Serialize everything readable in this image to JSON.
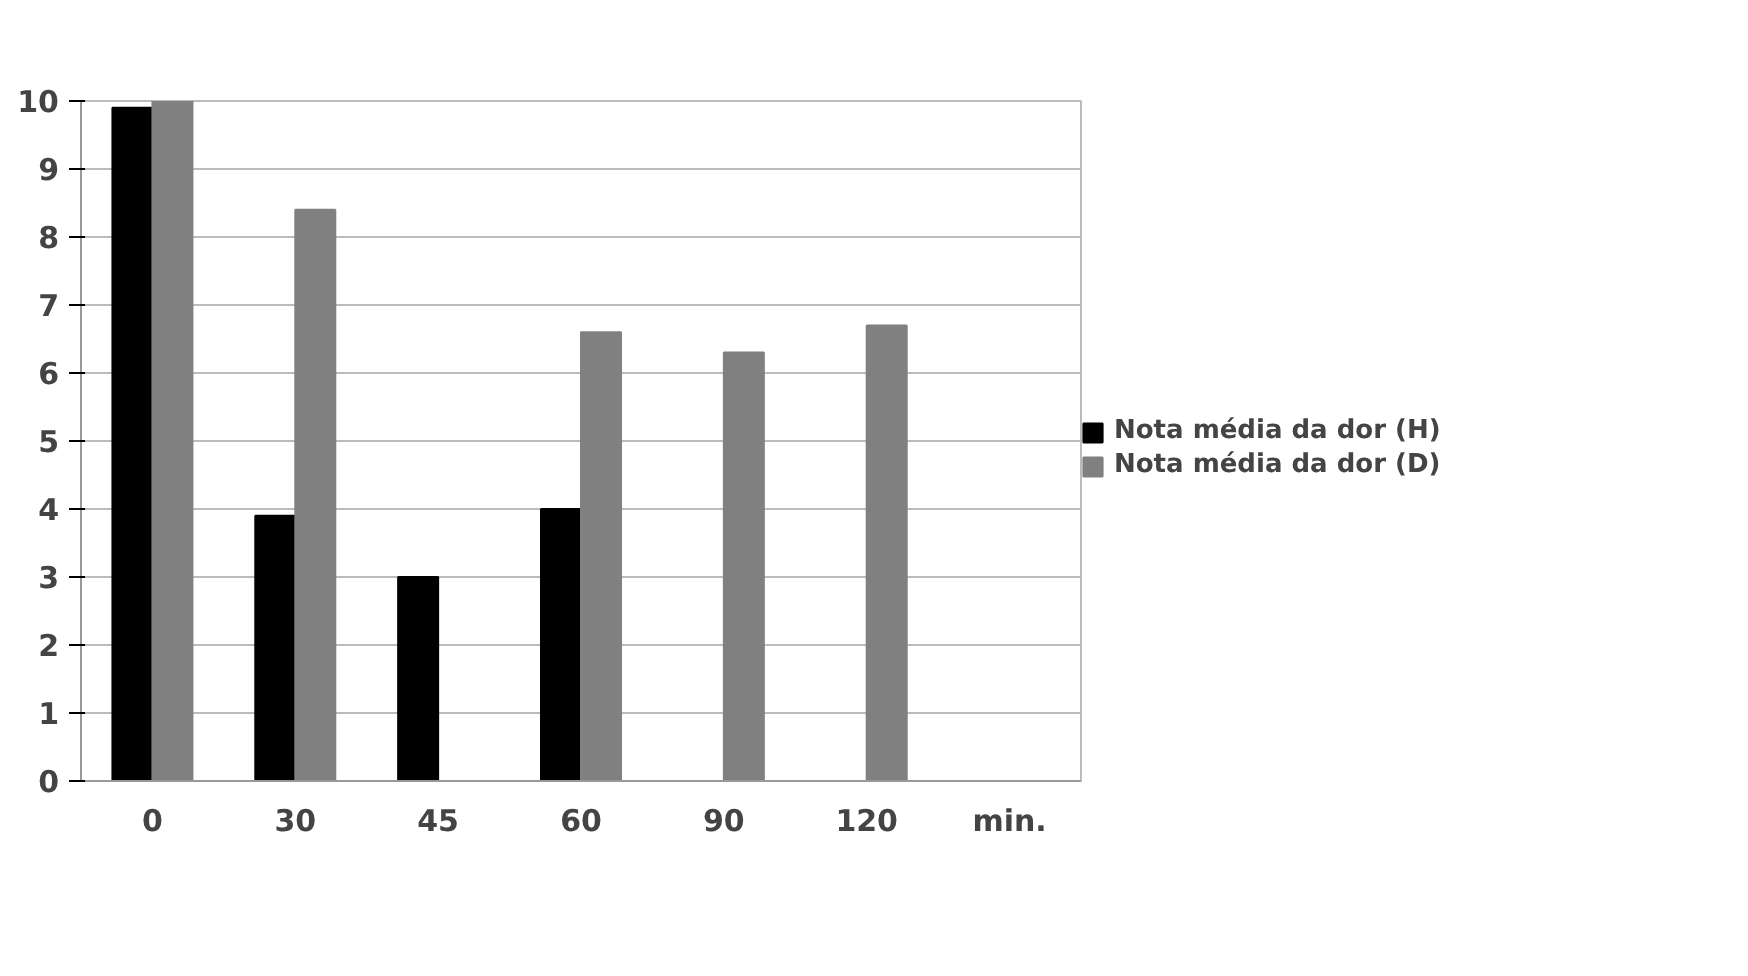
{
  "chart_data": {
    "type": "bar",
    "categories": [
      "0",
      "30",
      "45",
      "60",
      "90",
      "120",
      "min."
    ],
    "series": [
      {
        "name": "Nota média da dor (H)",
        "color": "#000000",
        "values": [
          9.9,
          3.9,
          3.0,
          4.0,
          0,
          0,
          null
        ]
      },
      {
        "name": "Nota média da dor (D)",
        "color": "#808080",
        "values": [
          10.0,
          8.4,
          null,
          6.6,
          6.3,
          6.7,
          null
        ]
      }
    ],
    "ylim": [
      0,
      10
    ],
    "yticks": [
      0,
      1,
      2,
      3,
      4,
      5,
      6,
      7,
      8,
      9,
      10
    ],
    "grid": "y",
    "legend": "right"
  }
}
